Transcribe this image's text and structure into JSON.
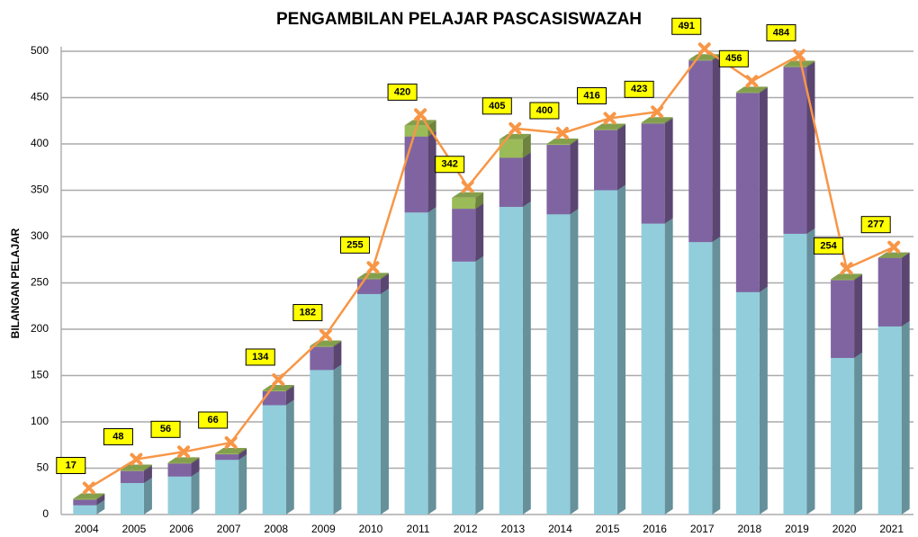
{
  "chart_data": {
    "type": "bar",
    "stacked": true,
    "title": "PENGAMBILAN PELAJAR PASCASISWAZAH",
    "y_label": "BILANGAN PELAJAR",
    "categories": [
      "2004",
      "2005",
      "2006",
      "2007",
      "2008",
      "2009",
      "2010",
      "2011",
      "2012",
      "2013",
      "2014",
      "2015",
      "2016",
      "2017",
      "2018",
      "2019",
      "2020",
      "2021"
    ],
    "series": [
      {
        "color": "#92cddc",
        "values": [
          10,
          34,
          41,
          59,
          118,
          156,
          238,
          326,
          273,
          332,
          324,
          350,
          314,
          294,
          240,
          303,
          169,
          203
        ]
      },
      {
        "color": "#8064a2",
        "values": [
          6,
          13,
          14,
          6,
          15,
          25,
          16,
          82,
          57,
          53,
          75,
          65,
          108,
          196,
          215,
          180,
          84,
          74
        ]
      },
      {
        "color": "#9bbb59",
        "values": [
          1,
          1,
          1,
          1,
          1,
          1,
          1,
          12,
          12,
          20,
          1,
          1,
          1,
          1,
          1,
          1,
          1,
          0
        ]
      },
      {
        "type": "line",
        "color": "#f79646",
        "values": [
          17,
          48,
          56,
          66,
          134,
          182,
          255,
          420,
          342,
          405,
          400,
          416,
          423,
          491,
          456,
          484,
          254,
          277
        ]
      }
    ],
    "ylim": [
      0,
      500
    ],
    "yticks": [
      0,
      50,
      100,
      150,
      200,
      250,
      300,
      350,
      400,
      450,
      500
    ],
    "grid": true
  }
}
